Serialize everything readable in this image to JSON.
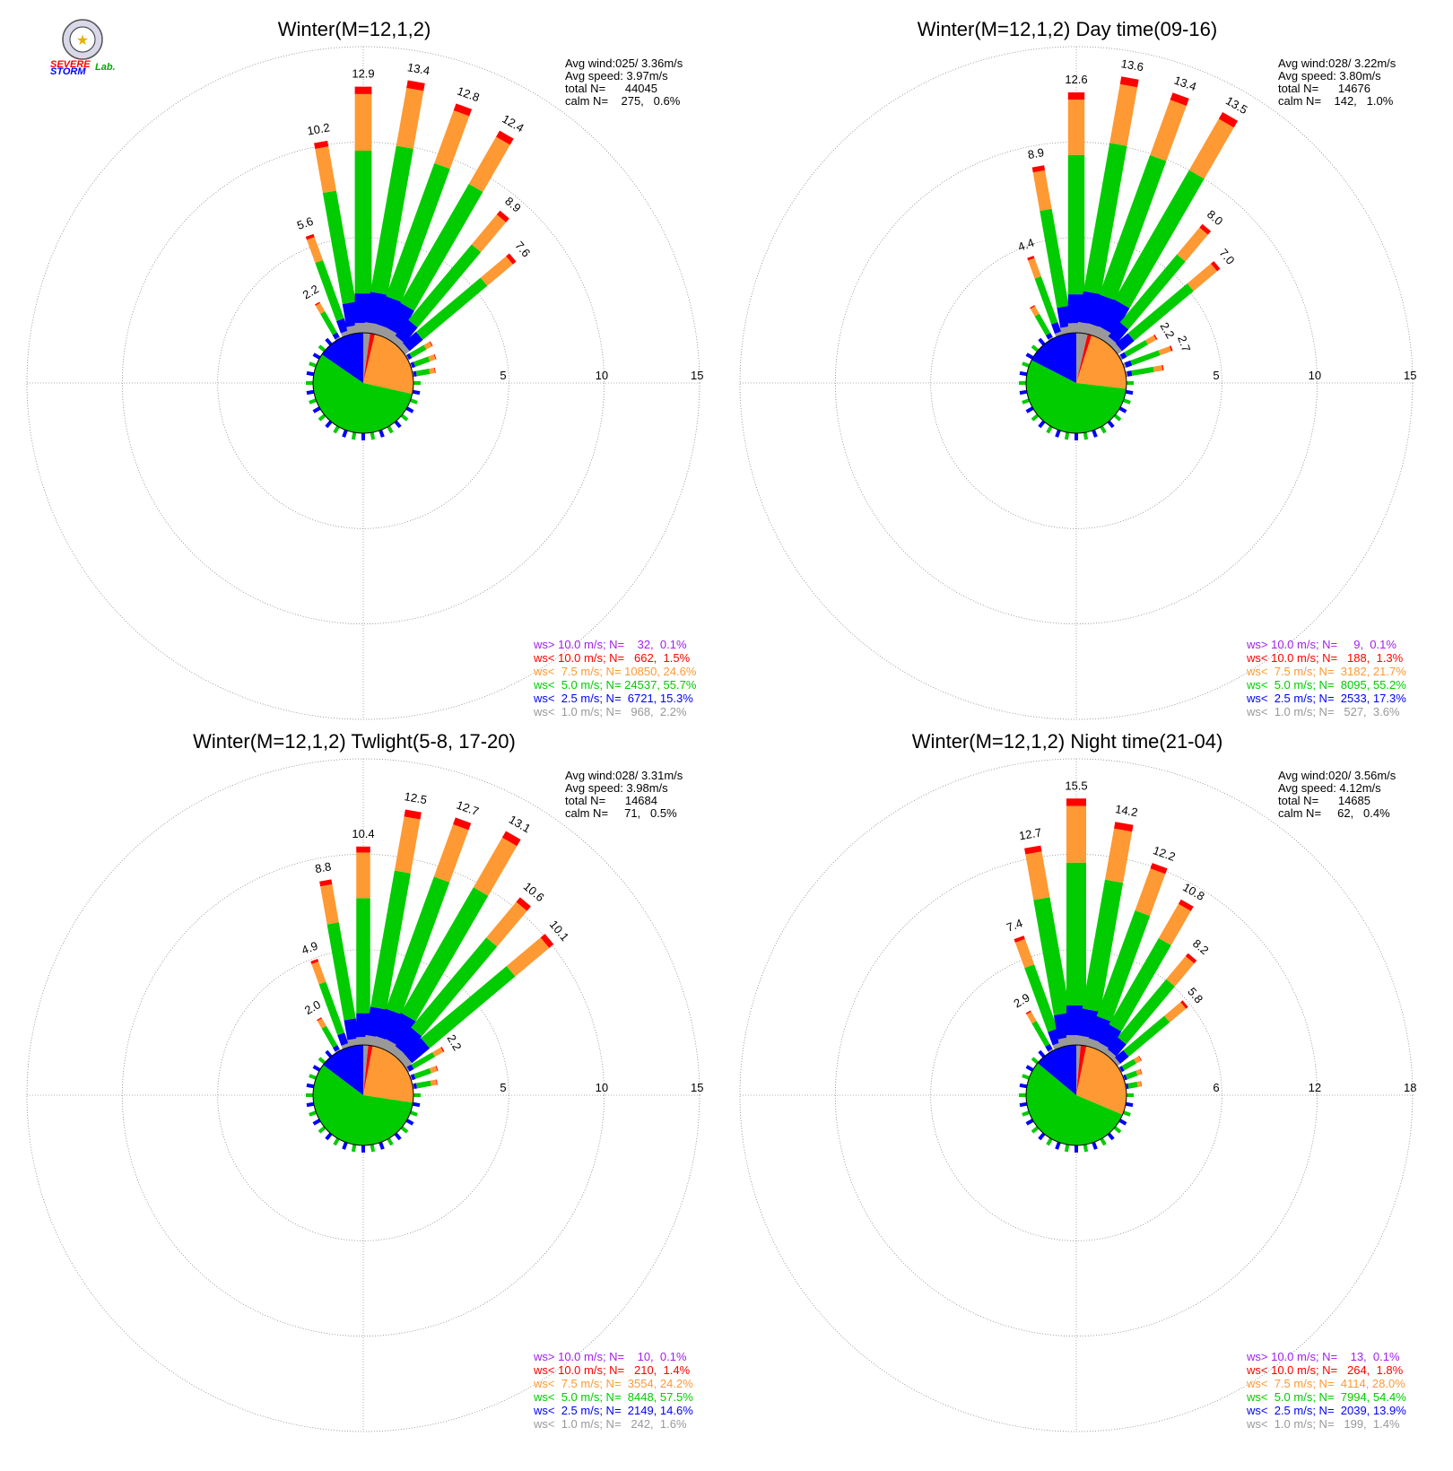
{
  "logo": {
    "text_lines": [
      "SEVERE",
      "STORM",
      "Lab."
    ]
  },
  "chart_data": [
    {
      "type": "windrose",
      "title": "Winter(M=12,1,2)",
      "stats": [
        "Avg wind:025/ 3.36m/s",
        "Avg speed: 3.97m/s",
        "total N=      44045",
        "calm N=    275,   0.6%"
      ],
      "rings": [
        5,
        10,
        15
      ],
      "legend": [
        {
          "text": "ws> 10.0 m/s; N=    32,  0.1%",
          "color": "#a020f0"
        },
        {
          "text": "ws< 10.0 m/s; N=   662,  1.5%",
          "color": "#ff0000"
        },
        {
          "text": "ws<  7.5 m/s; N= 10850, 24.6%",
          "color": "#ff9933"
        },
        {
          "text": "ws<  5.0 m/s; N= 24537, 55.7%",
          "color": "#00cc00"
        },
        {
          "text": "ws<  2.5 m/s; N=  6721, 15.3%",
          "color": "#0000ff"
        },
        {
          "text": "ws<  1.0 m/s; N=   968,  2.2%",
          "color": "#999999"
        }
      ],
      "spokes": [
        {
          "dir": -30,
          "total": 2.2,
          "label": "2.2"
        },
        {
          "dir": -20,
          "total": 5.6,
          "label": "5.6"
        },
        {
          "dir": -10,
          "total": 10.2,
          "label": "10.2"
        },
        {
          "dir": 0,
          "total": 12.9,
          "label": "12.9"
        },
        {
          "dir": 10,
          "total": 13.4,
          "label": "13.4"
        },
        {
          "dir": 20,
          "total": 12.8,
          "label": "12.8"
        },
        {
          "dir": 30,
          "total": 12.4,
          "label": "12.4"
        },
        {
          "dir": 40,
          "total": 8.9,
          "label": "8.9"
        },
        {
          "dir": 50,
          "total": 7.6,
          "label": "7.6"
        },
        {
          "dir": 60,
          "total": 1.5,
          "label": ""
        },
        {
          "dir": 70,
          "total": 1.4,
          "label": ""
        },
        {
          "dir": 80,
          "total": 1.2,
          "label": ""
        }
      ],
      "center_pie": [
        {
          "name": "ws< 1.0",
          "value": 2.2,
          "color": "#999999"
        },
        {
          "name": "ws< 10.0",
          "value": 1.5,
          "color": "#ff0000"
        },
        {
          "name": "ws< 7.5",
          "value": 24.6,
          "color": "#ff9933"
        },
        {
          "name": "ws< 5.0",
          "value": 55.7,
          "color": "#00cc00"
        },
        {
          "name": "ws< 2.5",
          "value": 15.3,
          "color": "#0000ff"
        }
      ]
    },
    {
      "type": "windrose",
      "title": "Winter(M=12,1,2) Day time(09-16)",
      "stats": [
        "Avg wind:028/ 3.22m/s",
        "Avg speed: 3.80m/s",
        "total N=      14676",
        "calm N=    142,   1.0%"
      ],
      "rings": [
        5,
        10,
        15
      ],
      "legend": [
        {
          "text": "ws> 10.0 m/s; N=     9,  0.1%",
          "color": "#a020f0"
        },
        {
          "text": "ws< 10.0 m/s; N=   188,  1.3%",
          "color": "#ff0000"
        },
        {
          "text": "ws<  7.5 m/s; N=  3182, 21.7%",
          "color": "#ff9933"
        },
        {
          "text": "ws<  5.0 m/s; N=  8095, 55.2%",
          "color": "#00cc00"
        },
        {
          "text": "ws<  2.5 m/s; N=  2533, 17.3%",
          "color": "#0000ff"
        },
        {
          "text": "ws<  1.0 m/s; N=   527,  3.6%",
          "color": "#999999"
        }
      ],
      "spokes": [
        {
          "dir": -30,
          "total": 2.0,
          "label": ""
        },
        {
          "dir": -20,
          "total": 4.4,
          "label": "4.4"
        },
        {
          "dir": -10,
          "total": 8.9,
          "label": "8.9"
        },
        {
          "dir": 0,
          "total": 12.6,
          "label": "12.6"
        },
        {
          "dir": 10,
          "total": 13.6,
          "label": "13.6"
        },
        {
          "dir": 20,
          "total": 13.4,
          "label": "13.4"
        },
        {
          "dir": 30,
          "total": 13.5,
          "label": "13.5"
        },
        {
          "dir": 40,
          "total": 8.0,
          "label": "8.0"
        },
        {
          "dir": 50,
          "total": 7.0,
          "label": "7.0"
        },
        {
          "dir": 60,
          "total": 2.2,
          "label": "2.2"
        },
        {
          "dir": 70,
          "total": 2.7,
          "label": "2.7"
        },
        {
          "dir": 80,
          "total": 2.0,
          "label": ""
        }
      ],
      "center_pie": [
        {
          "name": "ws< 1.0",
          "value": 3.6,
          "color": "#999999"
        },
        {
          "name": "ws< 10.0",
          "value": 1.3,
          "color": "#ff0000"
        },
        {
          "name": "ws< 7.5",
          "value": 21.7,
          "color": "#ff9933"
        },
        {
          "name": "ws< 5.0",
          "value": 55.2,
          "color": "#00cc00"
        },
        {
          "name": "ws< 2.5",
          "value": 17.3,
          "color": "#0000ff"
        }
      ]
    },
    {
      "type": "windrose",
      "title": "Winter(M=12,1,2) Twlight(5-8, 17-20)",
      "stats": [
        "Avg wind:028/ 3.31m/s",
        "Avg speed: 3.98m/s",
        "total N=      14684",
        "calm N=     71,   0.5%"
      ],
      "rings": [
        5,
        10,
        15
      ],
      "legend": [
        {
          "text": "ws> 10.0 m/s; N=    10,  0.1%",
          "color": "#a020f0"
        },
        {
          "text": "ws< 10.0 m/s; N=   210,  1.4%",
          "color": "#ff0000"
        },
        {
          "text": "ws<  7.5 m/s; N=  3554, 24.2%",
          "color": "#ff9933"
        },
        {
          "text": "ws<  5.0 m/s; N=  8448, 57.5%",
          "color": "#00cc00"
        },
        {
          "text": "ws<  2.5 m/s; N=  2149, 14.6%",
          "color": "#0000ff"
        },
        {
          "text": "ws<  1.0 m/s; N=   242,  1.6%",
          "color": "#999999"
        }
      ],
      "spokes": [
        {
          "dir": -30,
          "total": 2.0,
          "label": "2.0"
        },
        {
          "dir": -20,
          "total": 4.9,
          "label": "4.9"
        },
        {
          "dir": -10,
          "total": 8.8,
          "label": "8.8"
        },
        {
          "dir": 0,
          "total": 10.4,
          "label": "10.4"
        },
        {
          "dir": 10,
          "total": 12.5,
          "label": "12.5"
        },
        {
          "dir": 20,
          "total": 12.7,
          "label": "12.7"
        },
        {
          "dir": 30,
          "total": 13.1,
          "label": "13.1"
        },
        {
          "dir": 40,
          "total": 10.6,
          "label": "10.6"
        },
        {
          "dir": 50,
          "total": 10.1,
          "label": "10.1"
        },
        {
          "dir": 60,
          "total": 2.2,
          "label": "2.2"
        },
        {
          "dir": 70,
          "total": 1.5,
          "label": ""
        },
        {
          "dir": 80,
          "total": 1.3,
          "label": ""
        }
      ],
      "center_pie": [
        {
          "name": "ws< 1.0",
          "value": 1.6,
          "color": "#999999"
        },
        {
          "name": "ws< 10.0",
          "value": 1.4,
          "color": "#ff0000"
        },
        {
          "name": "ws< 7.5",
          "value": 24.2,
          "color": "#ff9933"
        },
        {
          "name": "ws< 5.0",
          "value": 57.5,
          "color": "#00cc00"
        },
        {
          "name": "ws< 2.5",
          "value": 14.6,
          "color": "#0000ff"
        }
      ]
    },
    {
      "type": "windrose",
      "title": "Winter(M=12,1,2) Night time(21-04)",
      "stats": [
        "Avg wind:020/ 3.56m/s",
        "Avg speed: 4.12m/s",
        "total N=      14685",
        "calm N=     62,   0.4%"
      ],
      "rings": [
        6,
        12,
        18
      ],
      "legend": [
        {
          "text": "ws> 10.0 m/s; N=    13,  0.1%",
          "color": "#a020f0"
        },
        {
          "text": "ws< 10.0 m/s; N=   264,  1.8%",
          "color": "#ff0000"
        },
        {
          "text": "ws<  7.5 m/s; N=  4114, 28.0%",
          "color": "#ff9933"
        },
        {
          "text": "ws<  5.0 m/s; N=  7994, 54.4%",
          "color": "#00cc00"
        },
        {
          "text": "ws<  2.5 m/s; N=  2039, 13.9%",
          "color": "#0000ff"
        },
        {
          "text": "ws<  1.0 m/s; N=   199,  1.4%",
          "color": "#999999"
        }
      ],
      "spokes": [
        {
          "dir": -30,
          "total": 2.9,
          "label": "2.9"
        },
        {
          "dir": -20,
          "total": 7.4,
          "label": "7.4"
        },
        {
          "dir": -10,
          "total": 12.7,
          "label": "12.7"
        },
        {
          "dir": 0,
          "total": 15.5,
          "label": "15.5"
        },
        {
          "dir": 10,
          "total": 14.2,
          "label": "14.2"
        },
        {
          "dir": 20,
          "total": 12.2,
          "label": "12.2"
        },
        {
          "dir": 30,
          "total": 10.8,
          "label": "10.8"
        },
        {
          "dir": 40,
          "total": 8.2,
          "label": "8.2"
        },
        {
          "dir": 50,
          "total": 5.8,
          "label": "5.8"
        },
        {
          "dir": 60,
          "total": 1.5,
          "label": ""
        },
        {
          "dir": 70,
          "total": 1.2,
          "label": ""
        },
        {
          "dir": 80,
          "total": 1.0,
          "label": ""
        }
      ],
      "center_pie": [
        {
          "name": "ws< 1.0",
          "value": 1.4,
          "color": "#999999"
        },
        {
          "name": "ws< 10.0",
          "value": 1.8,
          "color": "#ff0000"
        },
        {
          "name": "ws< 7.5",
          "value": 28.0,
          "color": "#ff9933"
        },
        {
          "name": "ws< 5.0",
          "value": 54.4,
          "color": "#00cc00"
        },
        {
          "name": "ws< 2.5",
          "value": 13.9,
          "color": "#0000ff"
        }
      ]
    }
  ],
  "colors": {
    "gray": "#999999",
    "blue": "#0000ff",
    "green": "#00cc00",
    "orange": "#ff9933",
    "red": "#ff0000",
    "purple": "#a020f0",
    "ring": "#888888"
  }
}
